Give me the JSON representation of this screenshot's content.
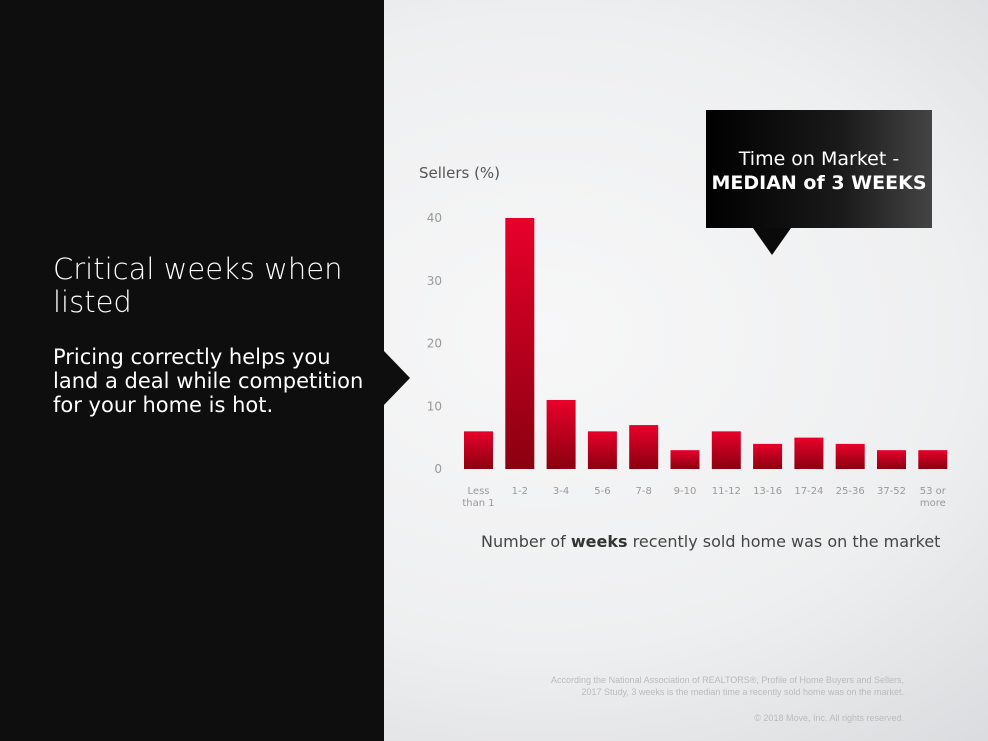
{
  "left": {
    "heading": "Critical weeks when listed",
    "subtext": "Pricing correctly helps you land a deal while competition for your home is hot."
  },
  "callout": {
    "line1": "Time on Market -",
    "line2": "MEDIAN of 3 WEEKS"
  },
  "chart_data": {
    "type": "bar",
    "ylabel": "Sellers (%)",
    "xlabel_pre": "Number of ",
    "xlabel_bold": "weeks",
    "xlabel_post": " recently sold home was on the market",
    "categories": [
      [
        "Less",
        "than 1"
      ],
      [
        "1-2"
      ],
      [
        "3-4"
      ],
      [
        "5-6"
      ],
      [
        "7-8"
      ],
      [
        "9-10"
      ],
      [
        "11-12"
      ],
      [
        "13-16"
      ],
      [
        "17-24"
      ],
      [
        "25-36"
      ],
      [
        "37-52"
      ],
      [
        "53 or",
        "more"
      ]
    ],
    "values": [
      6,
      40,
      11,
      6,
      7,
      3,
      6,
      4,
      5,
      4,
      3,
      3
    ],
    "yticks": [
      0,
      10,
      20,
      30,
      40
    ],
    "ylim": [
      0,
      40
    ],
    "grid": false,
    "bar_color_top": "#e8002a",
    "bar_color_bottom": "#8a0010"
  },
  "footer": {
    "source_line1": "According the National Association of REALTORS®, Profile of Home Buyers and Sellers,",
    "source_line2": "2017 Study, 3 weeks is the median time a recently sold home was on the market.",
    "copyright": "© 2018 Move, Inc.  All rights reserved."
  }
}
